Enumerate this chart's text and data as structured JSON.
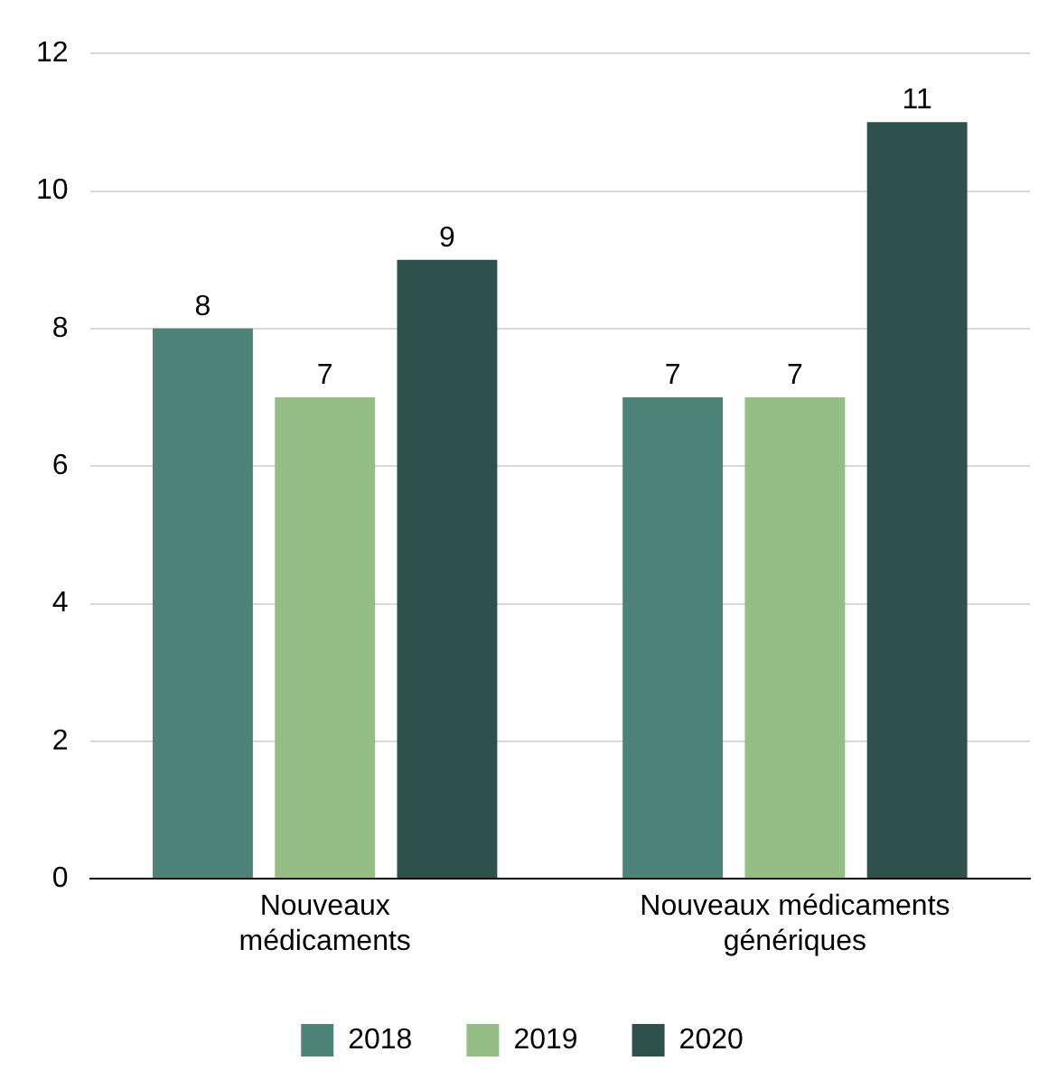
{
  "chart_data": {
    "type": "bar",
    "categories": [
      "Nouveaux médicaments",
      "Nouveaux médicaments génériques"
    ],
    "series": [
      {
        "name": "2018",
        "color": "#4e8379",
        "values": [
          8,
          7
        ]
      },
      {
        "name": "2019",
        "color": "#97bd86",
        "values": [
          7,
          7
        ]
      },
      {
        "name": "2020",
        "color": "#2e514c",
        "values": [
          9,
          11
        ]
      }
    ],
    "ylim": [
      0,
      12
    ],
    "yticks": [
      0,
      2,
      4,
      6,
      8,
      10,
      12
    ],
    "grid": "y",
    "legend": "bottom",
    "data_labels": true
  }
}
